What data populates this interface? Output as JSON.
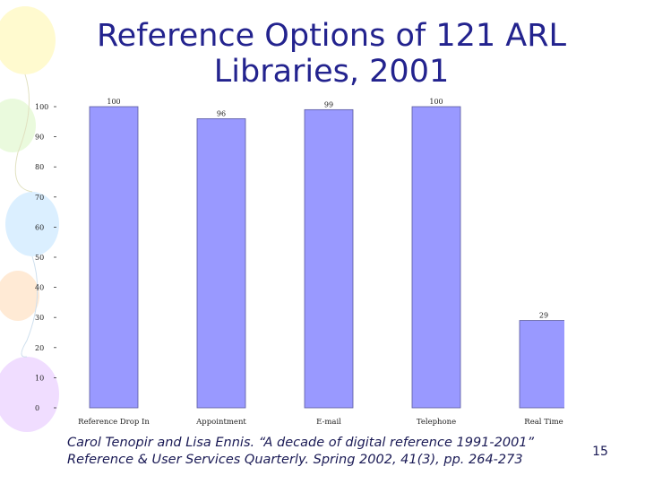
{
  "slide": {
    "title_line1": "Reference Options of 121 ARL",
    "title_line2": "Libraries, 2001",
    "citation_line1": "Carol Tenopir and Lisa Ennis. “A decade of digital reference 1991-2001”",
    "citation_line2": "Reference & User Services Quarterly. Spring 2002, 41(3), pp. 264-273",
    "page_number": "15"
  },
  "colors": {
    "bar_fill": "#9999ff",
    "bar_stroke": "#5a5a9e",
    "title": "#23238e"
  },
  "chart_data": {
    "type": "bar",
    "categories": [
      "Reference Drop In",
      "Appointment",
      "E-mail",
      "Telephone",
      "Real Time"
    ],
    "values": [
      100,
      96,
      99,
      100,
      29
    ],
    "data_labels": [
      "100",
      "96",
      "99",
      "100",
      "29"
    ],
    "yticks": [
      0,
      10,
      20,
      30,
      40,
      50,
      60,
      70,
      80,
      90,
      100
    ],
    "ylim": [
      0,
      100
    ],
    "grid": false,
    "legend": "none"
  }
}
